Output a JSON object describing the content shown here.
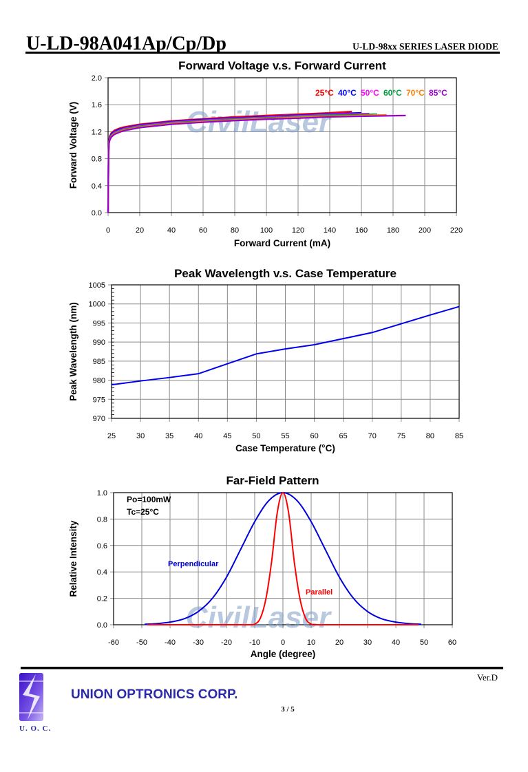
{
  "header": {
    "part_number": "U-LD-98A041Ap/Cp/Dp",
    "series": "U-LD-98xx SERIES LASER DIODE"
  },
  "watermark": "CivilLaser",
  "footer": {
    "company": "UNION OPTRONICS CORP.",
    "logo_text": "U. O. C.",
    "page": "3 / 5",
    "version": "Ver.D"
  },
  "colors": {
    "grid": "#8a8a8a",
    "company": "#2b2ba8",
    "logo": "#5a2fd0"
  },
  "chart_data": [
    {
      "type": "line",
      "title": "Forward Voltage v.s. Forward Current",
      "xlabel": "Forward Current (mA)",
      "ylabel": "Forward Voltage (V)",
      "xlim": [
        0,
        220
      ],
      "ylim": [
        0,
        2.0
      ],
      "xticks": [
        "0",
        "20",
        "40",
        "60",
        "80",
        "100",
        "120",
        "140",
        "160",
        "180",
        "200",
        "220"
      ],
      "yticks": [
        "0.0",
        "0.4",
        "0.8",
        "1.2",
        "1.6",
        "2.0"
      ],
      "grid": true,
      "legend": "top-right",
      "series": [
        {
          "name": "25°C",
          "color": "#ff0000",
          "x": [
            0,
            0.3,
            0.6,
            1,
            2,
            4,
            7,
            10,
            20,
            40,
            60,
            80,
            100,
            120,
            140,
            154
          ],
          "y": [
            0,
            0.9,
            1.08,
            1.13,
            1.18,
            1.22,
            1.25,
            1.27,
            1.31,
            1.36,
            1.39,
            1.42,
            1.44,
            1.46,
            1.48,
            1.5
          ]
        },
        {
          "name": "40°C",
          "color": "#0000ff",
          "x": [
            0,
            0.3,
            0.6,
            1,
            2,
            4,
            7,
            10,
            20,
            40,
            60,
            80,
            100,
            120,
            140,
            160
          ],
          "y": [
            0,
            0.88,
            1.06,
            1.115,
            1.165,
            1.205,
            1.235,
            1.255,
            1.3,
            1.35,
            1.38,
            1.405,
            1.425,
            1.445,
            1.465,
            1.48
          ]
        },
        {
          "name": "50°C",
          "color": "#ff00ff",
          "x": [
            0,
            0.3,
            0.6,
            1,
            2,
            4,
            7,
            10,
            20,
            40,
            60,
            80,
            100,
            120,
            140,
            165
          ],
          "y": [
            0,
            0.87,
            1.05,
            1.1,
            1.15,
            1.19,
            1.22,
            1.245,
            1.29,
            1.34,
            1.37,
            1.395,
            1.415,
            1.435,
            1.455,
            1.47
          ]
        },
        {
          "name": "60°C",
          "color": "#00a040",
          "x": [
            0,
            0.3,
            0.6,
            1,
            2,
            4,
            7,
            10,
            20,
            40,
            60,
            80,
            100,
            120,
            140,
            170
          ],
          "y": [
            0,
            0.86,
            1.04,
            1.09,
            1.14,
            1.18,
            1.21,
            1.235,
            1.28,
            1.33,
            1.36,
            1.385,
            1.405,
            1.425,
            1.445,
            1.46
          ]
        },
        {
          "name": "70°C",
          "color": "#ff8000",
          "x": [
            0,
            0.3,
            0.6,
            1,
            2,
            4,
            7,
            10,
            20,
            40,
            60,
            80,
            100,
            120,
            140,
            176
          ],
          "y": [
            0,
            0.85,
            1.03,
            1.08,
            1.13,
            1.17,
            1.2,
            1.225,
            1.27,
            1.32,
            1.35,
            1.375,
            1.395,
            1.415,
            1.43,
            1.45
          ]
        },
        {
          "name": "85°C",
          "color": "#9900cc",
          "x": [
            0,
            0.3,
            0.6,
            1,
            2,
            4,
            7,
            10,
            20,
            40,
            60,
            80,
            100,
            120,
            140,
            188
          ],
          "y": [
            0,
            0.84,
            1.02,
            1.07,
            1.12,
            1.16,
            1.19,
            1.215,
            1.26,
            1.31,
            1.34,
            1.365,
            1.385,
            1.4,
            1.42,
            1.44
          ]
        }
      ]
    },
    {
      "type": "line",
      "title": "Peak Wavelength v.s. Case Temperature",
      "xlabel": "Case Temperature (°C)",
      "ylabel": "Peak Wavelength (nm)",
      "xlim": [
        25,
        85
      ],
      "ylim": [
        970,
        1005
      ],
      "xticks": [
        "25",
        "30",
        "35",
        "40",
        "45",
        "50",
        "55",
        "60",
        "65",
        "70",
        "75",
        "80",
        "85"
      ],
      "yticks": [
        "970",
        "975",
        "980",
        "985",
        "990",
        "995",
        "1000",
        "1005"
      ],
      "grid": true,
      "series": [
        {
          "color": "#0000ee",
          "x": [
            25,
            30,
            35,
            40,
            45,
            50,
            55,
            60,
            65,
            70,
            75,
            80,
            85
          ],
          "y": [
            978.8,
            979.8,
            980.7,
            981.7,
            984.3,
            986.9,
            988.2,
            989.3,
            990.9,
            992.5,
            994.8,
            997.1,
            999.3
          ]
        }
      ]
    },
    {
      "type": "line",
      "title": "Far-Field Pattern",
      "xlabel": "Angle (degree)",
      "ylabel": "Relative Intensity",
      "xlim": [
        -60,
        60
      ],
      "ylim": [
        0,
        1.0
      ],
      "xticks": [
        "-60",
        "-50",
        "-40",
        "-30",
        "-20",
        "-10",
        "0",
        "10",
        "20",
        "30",
        "40",
        "50",
        "60"
      ],
      "yticks": [
        "0.0",
        "0.2",
        "0.4",
        "0.6",
        "0.8",
        "1.0"
      ],
      "grid": true,
      "annotations": [
        "Po=100mW",
        "Tc=25°C"
      ],
      "series": [
        {
          "name": "Perpendicular",
          "color": "#0000dd",
          "x": [
            -49,
            -45,
            -40,
            -35,
            -30,
            -25,
            -20,
            -15,
            -10,
            -5,
            0,
            5,
            10,
            15,
            20,
            25,
            30,
            35,
            40,
            45,
            49
          ],
          "y": [
            0.004,
            0.008,
            0.02,
            0.045,
            0.1,
            0.2,
            0.36,
            0.57,
            0.78,
            0.94,
            1.0,
            0.94,
            0.78,
            0.57,
            0.36,
            0.2,
            0.1,
            0.045,
            0.02,
            0.008,
            0.004
          ]
        },
        {
          "name": "Parallel",
          "color": "#ff0000",
          "x": [
            -48,
            -20,
            -12,
            -10,
            -8,
            -6,
            -4,
            -2,
            0,
            2,
            4,
            6,
            8,
            10,
            12,
            20,
            48
          ],
          "y": [
            0,
            0,
            0,
            0.005,
            0.05,
            0.2,
            0.48,
            0.85,
            1.0,
            0.85,
            0.48,
            0.2,
            0.05,
            0.005,
            0,
            0,
            0
          ]
        }
      ]
    }
  ]
}
